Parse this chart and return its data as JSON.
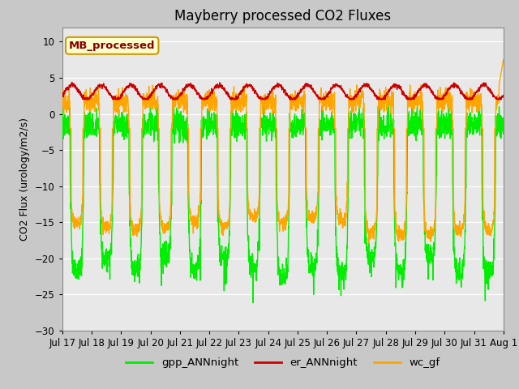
{
  "title": "Mayberry processed CO2 Fluxes",
  "ylabel": "CO2 Flux (urology/m2/s)",
  "ylim": [
    -30,
    12
  ],
  "yticks": [
    -30,
    -25,
    -20,
    -15,
    -10,
    -5,
    0,
    5,
    10
  ],
  "fig_bg_color": "#c8c8c8",
  "plot_bg_color": "#e8e8e8",
  "start_day": 17,
  "n_days": 15,
  "n_points": 2160,
  "gpp_color": "#00ee00",
  "er_color": "#cc0000",
  "wc_color": "#ffa500",
  "legend_label": "MB_processed",
  "legend_box_color": "#ffffcc",
  "legend_box_edge": "#cc9900",
  "legend_text_color": "#880000",
  "line_width": 1.0,
  "title_fontsize": 12,
  "axis_fontsize": 9,
  "tick_fontsize": 8.5
}
